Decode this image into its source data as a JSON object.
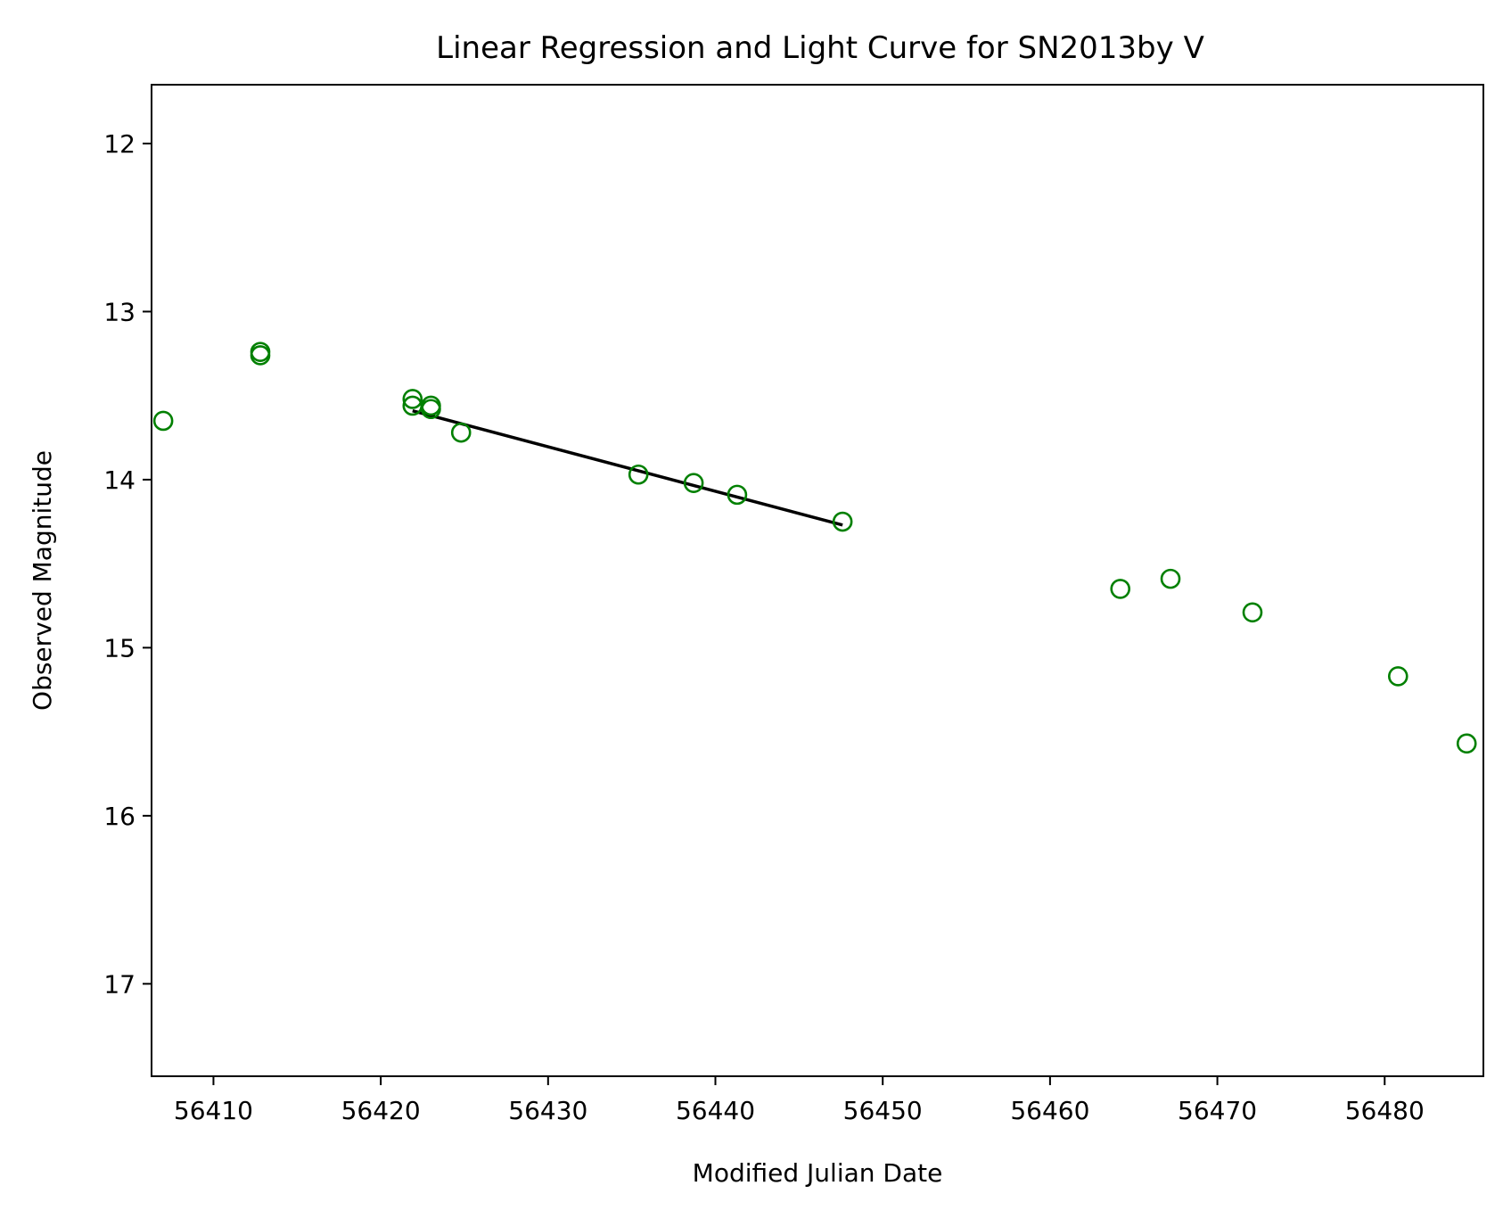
{
  "chart_data": {
    "type": "scatter",
    "title": "Linear Regression and Light Curve for SN2013by V",
    "xlabel": "Modified Julian Date",
    "ylabel": "Observed Magnitude",
    "xlim": [
      56406.3,
      56485.9
    ],
    "ylim": [
      17.55,
      11.65
    ],
    "y_inverted": true,
    "grid": false,
    "x_ticks": [
      56410,
      56420,
      56430,
      56440,
      56450,
      56460,
      56470,
      56480
    ],
    "y_ticks": [
      12,
      13,
      14,
      15,
      16,
      17
    ],
    "series": [
      {
        "marker": "open-circle",
        "color": "#008000",
        "points": [
          [
            56407.0,
            13.65
          ],
          [
            56412.8,
            13.24
          ],
          [
            56412.8,
            13.26
          ],
          [
            56421.9,
            13.52
          ],
          [
            56421.9,
            13.56
          ],
          [
            56423.0,
            13.56
          ],
          [
            56423.0,
            13.58
          ],
          [
            56424.8,
            13.72
          ],
          [
            56435.4,
            13.97
          ],
          [
            56438.7,
            14.02
          ],
          [
            56441.3,
            14.09
          ],
          [
            56447.6,
            14.25
          ],
          [
            56464.2,
            14.65
          ],
          [
            56467.2,
            14.59
          ],
          [
            56472.1,
            14.79
          ],
          [
            56480.8,
            15.17
          ],
          [
            56484.9,
            15.57
          ]
        ]
      },
      {
        "type": "line",
        "color": "#000000",
        "points": [
          [
            56421.9,
            13.59
          ],
          [
            56447.6,
            14.27
          ]
        ]
      }
    ]
  }
}
